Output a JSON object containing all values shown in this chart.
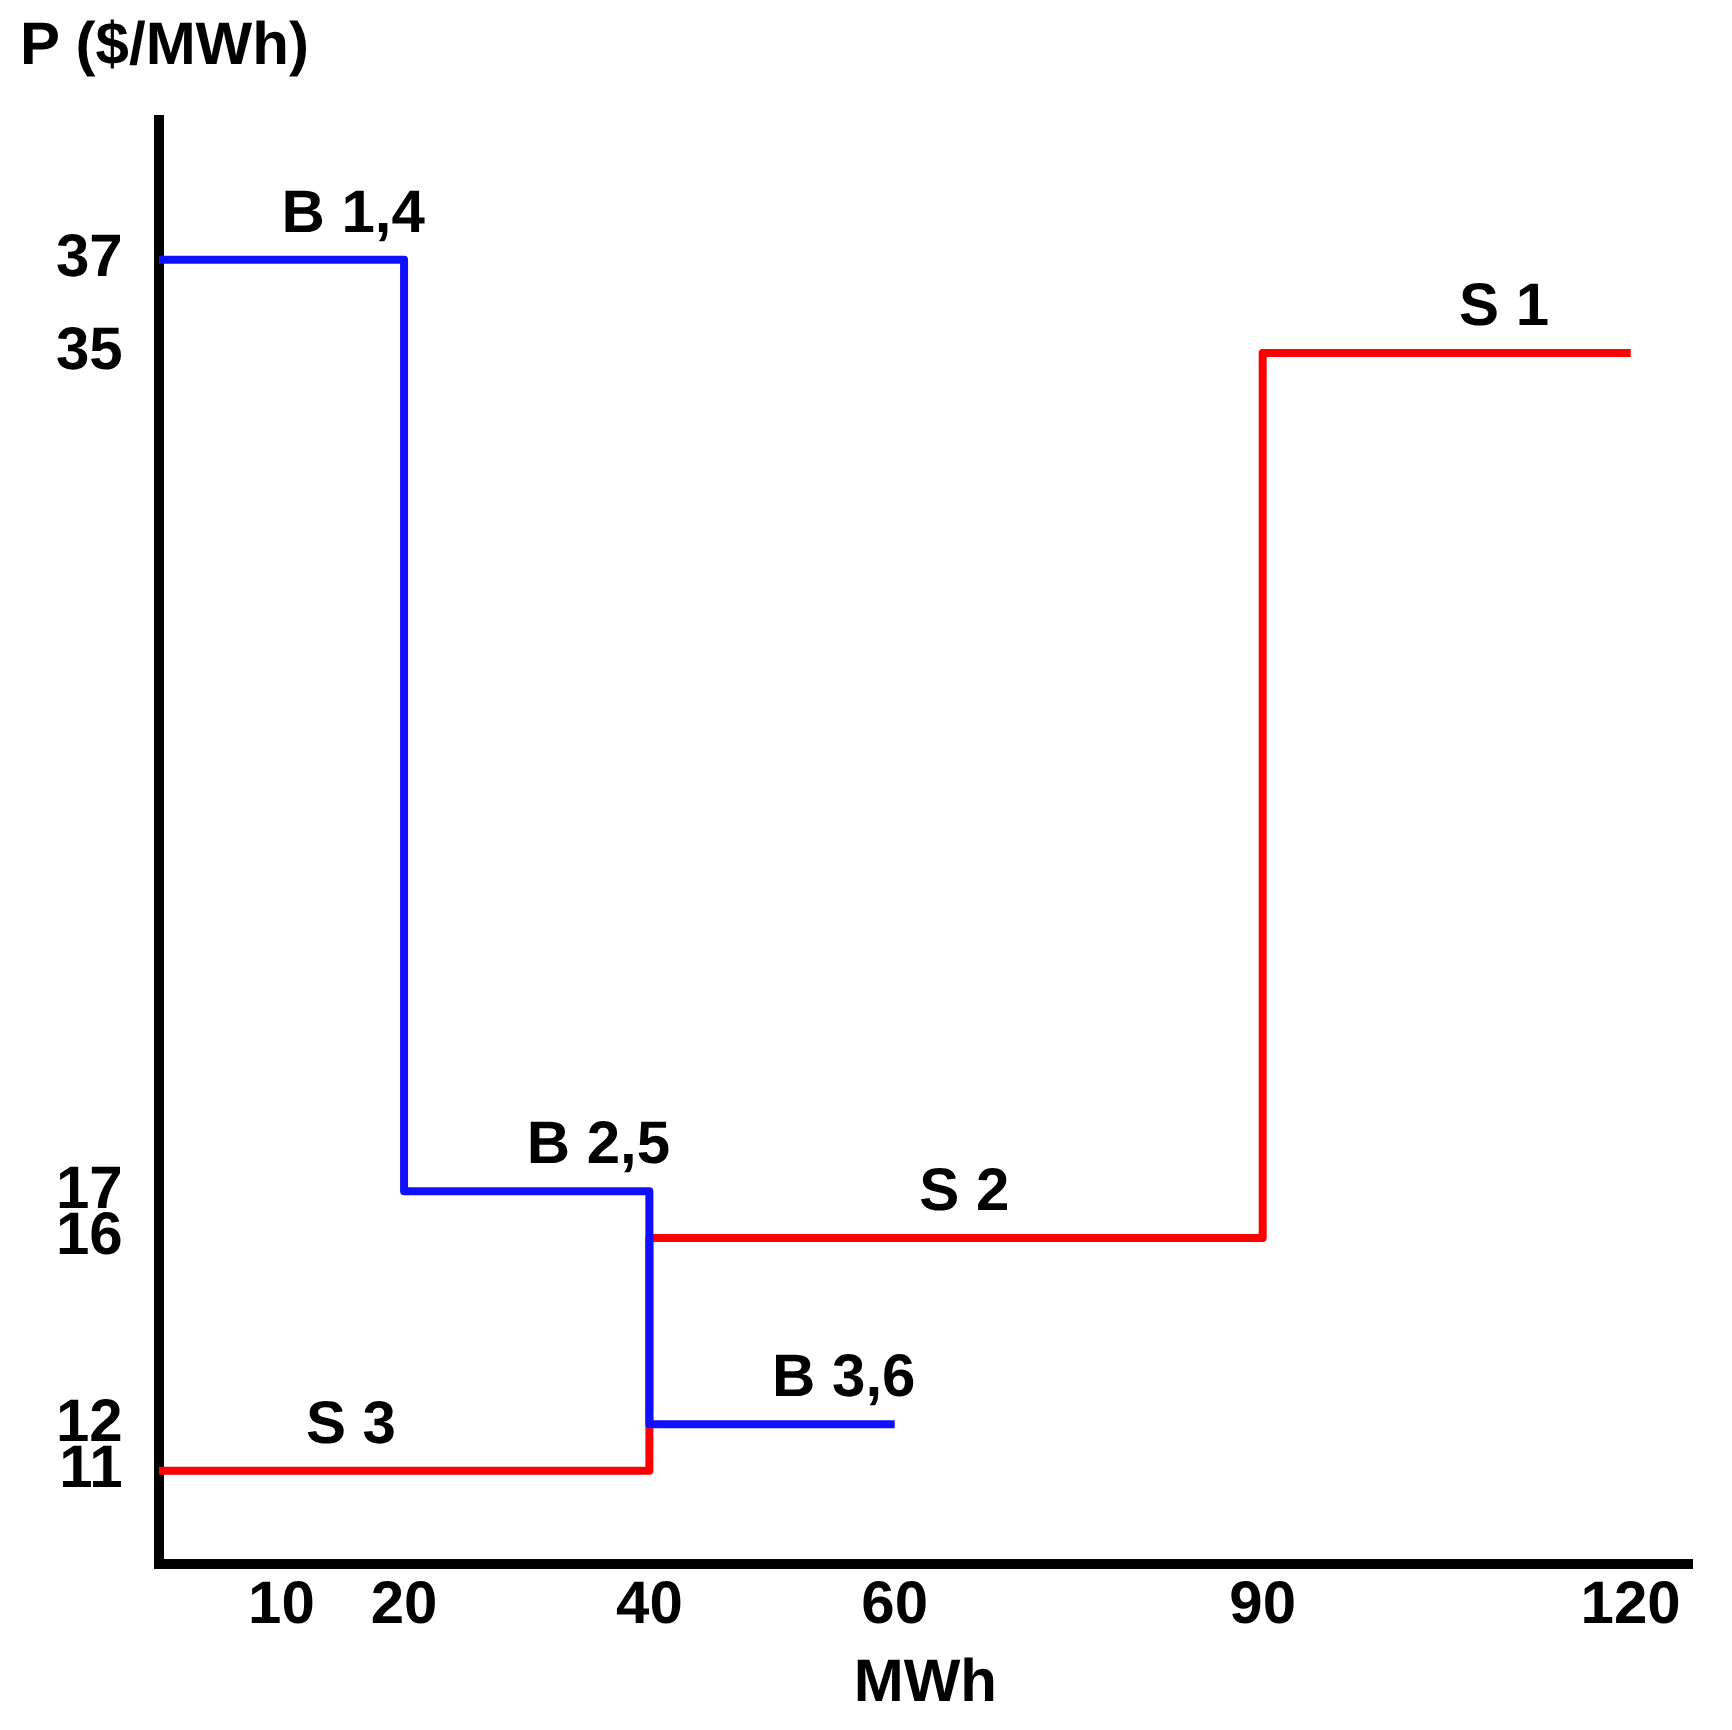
{
  "chart_data": {
    "type": "step",
    "xlabel": "MWh",
    "ylabel": "P ($/MWh)",
    "xlim": [
      0,
      125
    ],
    "xticks": [
      10,
      20,
      40,
      60,
      90,
      120
    ],
    "ylim": [
      9,
      40
    ],
    "yticks": [
      11,
      12,
      16,
      17,
      35,
      37
    ],
    "grid": false,
    "legend": false,
    "marker": "none",
    "line_style": "solid",
    "series": [
      {
        "color": "#1010ff",
        "x": [
          0,
          20,
          40,
          60
        ],
        "values": [
          37,
          17,
          12,
          12
        ]
      },
      {
        "color": "#ff0000",
        "x": [
          0,
          40,
          90,
          120
        ],
        "values": [
          11,
          16,
          35,
          35
        ]
      }
    ],
    "annotations": [
      {
        "text": "B 1,4",
        "x": 10,
        "y": 37
      },
      {
        "text": "B 2,5",
        "x": 30,
        "y": 17
      },
      {
        "text": "B 3,6",
        "x": 50,
        "y": 12
      },
      {
        "text": "S 3",
        "x": 12,
        "y": 11
      },
      {
        "text": "S 2",
        "x": 62,
        "y": 16
      },
      {
        "text": "S 1",
        "x": 106,
        "y": 35
      }
    ]
  }
}
